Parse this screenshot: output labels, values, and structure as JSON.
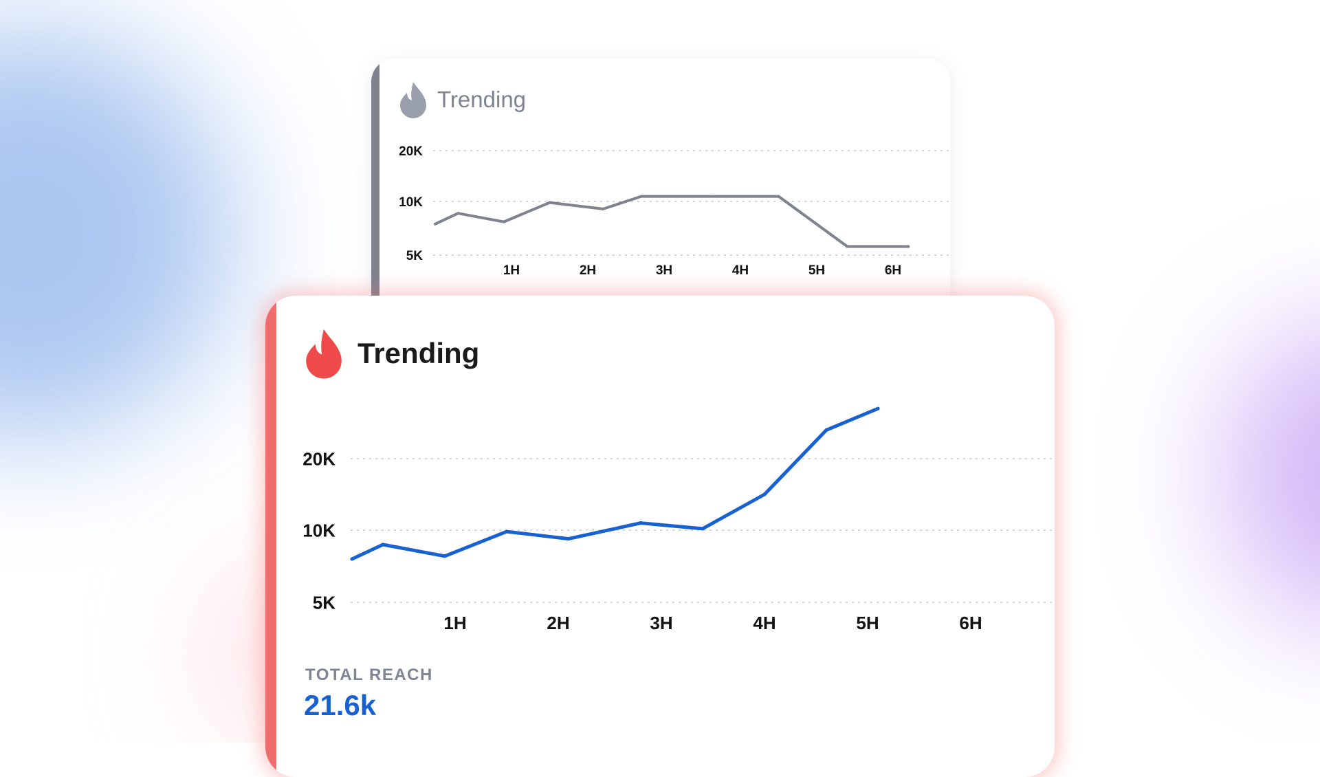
{
  "colors": {
    "back_line": "#7e838e",
    "front_line": "#1762d0",
    "flame_red": "#ee4a4a",
    "flame_gray": "#9aa0ab",
    "accent_stripe": "#f06d6d"
  },
  "back_card": {
    "title": "Trending",
    "icon": "flame-icon"
  },
  "front_card": {
    "title": "Trending",
    "icon": "flame-icon",
    "stat": {
      "label": "TOTAL REACH",
      "value": "21.6k"
    }
  },
  "chart_data": [
    {
      "type": "line",
      "title": "Trending",
      "yticks": [
        {
          "label": "20K",
          "value": 20000
        },
        {
          "label": "10K",
          "value": 10000
        },
        {
          "label": "5K",
          "value": 5000
        }
      ],
      "xticks": [
        {
          "label": "1H",
          "value": 1
        },
        {
          "label": "2H",
          "value": 2
        },
        {
          "label": "3H",
          "value": 3
        },
        {
          "label": "4H",
          "value": 4
        },
        {
          "label": "5H",
          "value": 5
        },
        {
          "label": "6H",
          "value": 6
        }
      ],
      "x": [
        0,
        0.3,
        0.9,
        1.5,
        2.2,
        2.7,
        3.6,
        4.5,
        5.4,
        6.2
      ],
      "y": [
        7900,
        8900,
        8100,
        9900,
        9300,
        11000,
        11000,
        11000,
        5800,
        5800
      ],
      "grid": true
    },
    {
      "type": "line",
      "title": "Trending",
      "yticks": [
        {
          "label": "20K",
          "value": 20000
        },
        {
          "label": "10K",
          "value": 10000
        },
        {
          "label": "5K",
          "value": 5000
        }
      ],
      "xticks": [
        {
          "label": "1H",
          "value": 1
        },
        {
          "label": "2H",
          "value": 2
        },
        {
          "label": "3H",
          "value": 3
        },
        {
          "label": "4H",
          "value": 4
        },
        {
          "label": "5H",
          "value": 5
        },
        {
          "label": "6H",
          "value": 6
        }
      ],
      "x": [
        0,
        0.3,
        0.9,
        1.5,
        2.1,
        2.8,
        3.4,
        4.0,
        4.6,
        5.1
      ],
      "y": [
        8000,
        9000,
        8200,
        9900,
        9400,
        11000,
        10200,
        15000,
        24000,
        27000
      ],
      "grid": true
    }
  ]
}
